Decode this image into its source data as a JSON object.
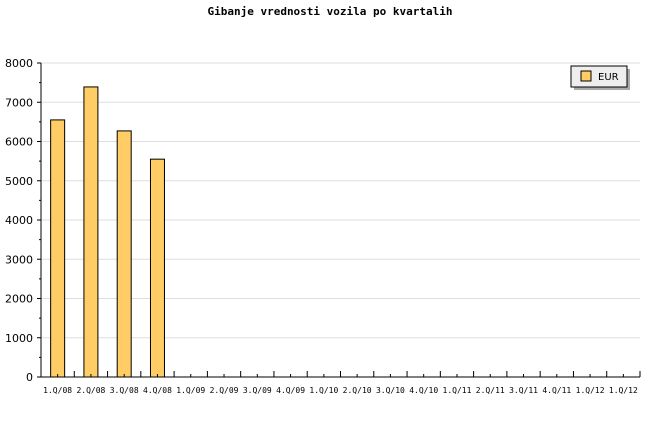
{
  "chart_data": {
    "type": "bar",
    "title": "Gibanje vrednosti vozila po kvartalih",
    "xlabel": "",
    "ylabel": "",
    "categories": [
      "1.Q/08",
      "2.Q/08",
      "3.Q/08",
      "4.Q/08",
      "1.Q/09",
      "2.Q/09",
      "3.Q/09",
      "4.Q/09",
      "1.Q/10",
      "2.Q/10",
      "3.Q/10",
      "4.Q/10",
      "1.Q/11",
      "2.Q/11",
      "3.Q/11",
      "4.Q/11",
      "1.Q/12",
      "1.Q/12"
    ],
    "series": [
      {
        "name": "EUR",
        "values": [
          6550,
          7390,
          6270,
          5550,
          0,
          0,
          0,
          0,
          0,
          0,
          0,
          0,
          0,
          0,
          0,
          0,
          0,
          0
        ]
      }
    ],
    "ylim": [
      0,
      8000
    ],
    "yticks": [
      "0",
      "1000",
      "2000",
      "3000",
      "4000",
      "5000",
      "6000",
      "7000",
      "8000"
    ],
    "grid": true,
    "legend": "top-right",
    "colors": {
      "bar": "#ffcc66",
      "grid": "#dddddd",
      "legend_bg": "#eeeeee"
    }
  }
}
